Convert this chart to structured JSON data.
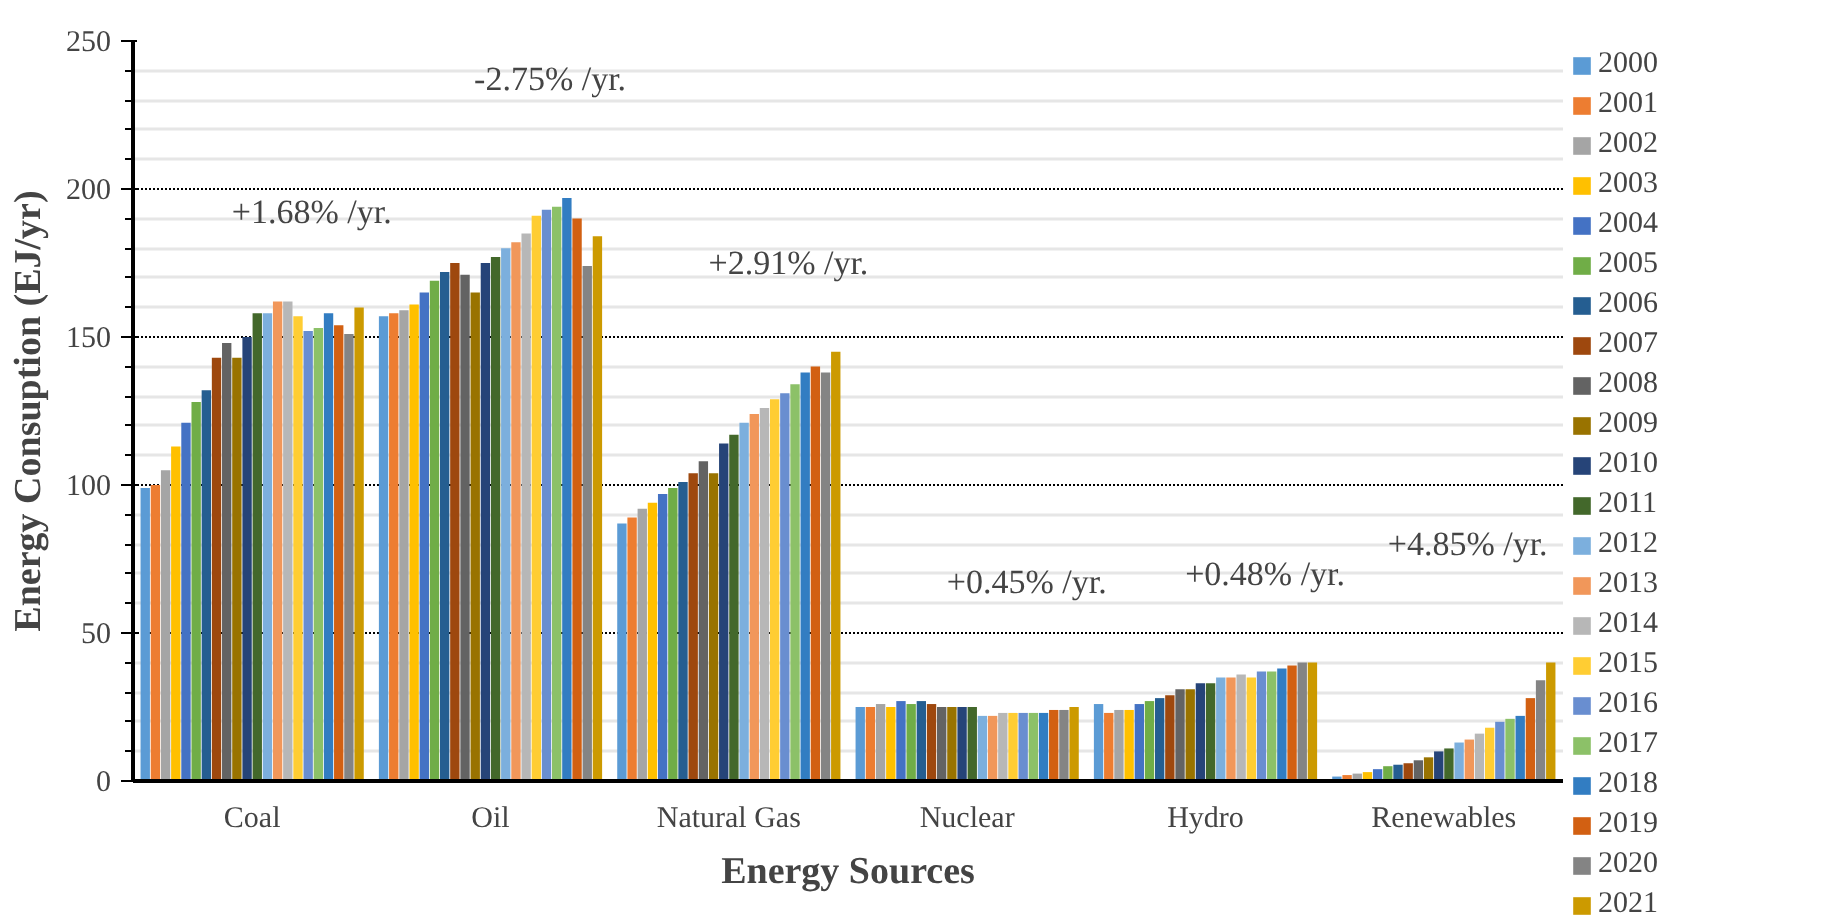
{
  "chart_data": {
    "type": "bar",
    "xlabel": "Energy Sources",
    "ylabel": "Energy Consuption (EJ/yr)",
    "categories": [
      "Coal",
      "Oil",
      "Natural Gas",
      "Nuclear",
      "Hydro",
      "Renewables"
    ],
    "ylim": [
      0,
      250
    ],
    "yticks": [
      0,
      50,
      100,
      150,
      200,
      250
    ],
    "grid": "y",
    "legend": "right",
    "annotations": [
      "+1.68% /yr.",
      "-2.75% /yr.",
      "+2.91% /yr.",
      "+0.45% /yr.",
      "+0.48% /yr.",
      "+4.85% /yr."
    ],
    "series": [
      {
        "name": "2000",
        "color": "#5b9bd5",
        "values": [
          99,
          157,
          87,
          25,
          26,
          1.5
        ]
      },
      {
        "name": "2001",
        "color": "#ed7d31",
        "values": [
          100,
          158,
          89,
          25,
          23,
          2
        ]
      },
      {
        "name": "2002",
        "color": "#a5a5a5",
        "values": [
          105,
          159,
          92,
          26,
          24,
          2.5
        ]
      },
      {
        "name": "2003",
        "color": "#ffc000",
        "values": [
          113,
          161,
          94,
          25,
          24,
          3
        ]
      },
      {
        "name": "2004",
        "color": "#4472c4",
        "values": [
          121,
          165,
          97,
          27,
          26,
          4
        ]
      },
      {
        "name": "2005",
        "color": "#70ad47",
        "values": [
          128,
          169,
          99,
          26,
          27,
          5
        ]
      },
      {
        "name": "2006",
        "color": "#255e91",
        "values": [
          132,
          172,
          101,
          27,
          28,
          5.5
        ]
      },
      {
        "name": "2007",
        "color": "#9e480e",
        "values": [
          143,
          175,
          104,
          26,
          29,
          6
        ]
      },
      {
        "name": "2008",
        "color": "#636363",
        "values": [
          148,
          171,
          108,
          25,
          31,
          7
        ]
      },
      {
        "name": "2009",
        "color": "#997300",
        "values": [
          143,
          165,
          104,
          25,
          31,
          8
        ]
      },
      {
        "name": "2010",
        "color": "#264478",
        "values": [
          150,
          175,
          114,
          25,
          33,
          10
        ]
      },
      {
        "name": "2011",
        "color": "#43682b",
        "values": [
          158,
          177,
          117,
          25,
          33,
          11
        ]
      },
      {
        "name": "2012",
        "color": "#7cafdd",
        "values": [
          158,
          180,
          121,
          22,
          35,
          13
        ]
      },
      {
        "name": "2013",
        "color": "#f1975a",
        "values": [
          162,
          182,
          124,
          22,
          35,
          14
        ]
      },
      {
        "name": "2014",
        "color": "#b7b7b7",
        "values": [
          162,
          185,
          126,
          23,
          36,
          16
        ]
      },
      {
        "name": "2015",
        "color": "#ffcd33",
        "values": [
          157,
          191,
          129,
          23,
          35,
          18
        ]
      },
      {
        "name": "2016",
        "color": "#698ed0",
        "values": [
          152,
          193,
          131,
          23,
          37,
          20
        ]
      },
      {
        "name": "2017",
        "color": "#8cc168",
        "values": [
          153,
          194,
          134,
          23,
          37,
          21
        ]
      },
      {
        "name": "2018",
        "color": "#327dc2",
        "values": [
          158,
          197,
          138,
          23,
          38,
          22
        ]
      },
      {
        "name": "2019",
        "color": "#d26012",
        "values": [
          154,
          190,
          140,
          24,
          39,
          28
        ]
      },
      {
        "name": "2020",
        "color": "#848484",
        "values": [
          151,
          174,
          138,
          24,
          40,
          34
        ]
      },
      {
        "name": "2021",
        "color": "#cc9a00",
        "values": [
          160,
          184,
          145,
          25,
          40,
          40
        ]
      }
    ]
  }
}
